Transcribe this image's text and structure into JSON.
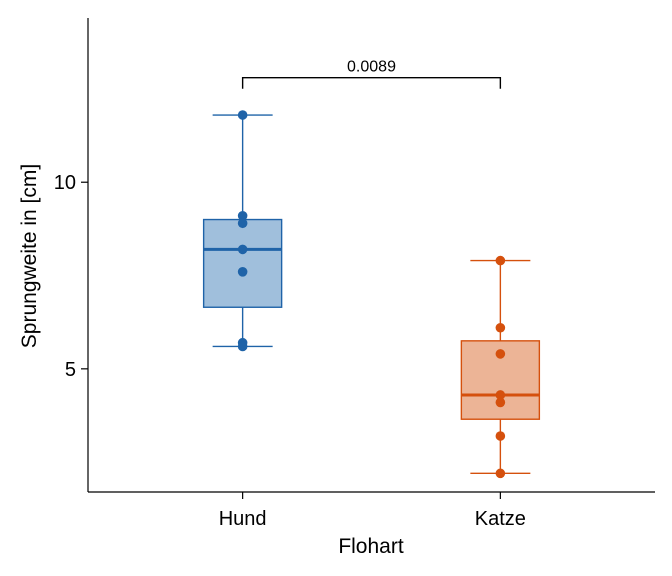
{
  "chart_data": {
    "type": "box",
    "xlabel": "Flohart",
    "ylabel": "Sprungweite in [cm]",
    "categories": [
      "Hund",
      "Katze"
    ],
    "ylim": [
      1.7,
      14.4
    ],
    "yticks": [
      5,
      10
    ],
    "grid": false,
    "series": [
      {
        "category": "Hund",
        "color": "#1f63a8",
        "fill": "#a0bfdc",
        "min": 5.6,
        "q1": 6.65,
        "median": 8.2,
        "q3": 9.0,
        "max": 11.8,
        "points": [
          11.8,
          9.1,
          8.9,
          8.2,
          7.6,
          5.7,
          5.6
        ]
      },
      {
        "category": "Katze",
        "color": "#d5500d",
        "fill": "#ecb496",
        "min": 2.2,
        "q1": 3.65,
        "median": 4.3,
        "q3": 5.75,
        "max": 7.9,
        "points": [
          7.9,
          6.1,
          5.4,
          4.3,
          4.1,
          3.2,
          2.2
        ]
      }
    ],
    "annotations": [
      {
        "type": "bracket",
        "from": "Hund",
        "to": "Katze",
        "label": "0.0089",
        "y": 12.8
      }
    ]
  }
}
